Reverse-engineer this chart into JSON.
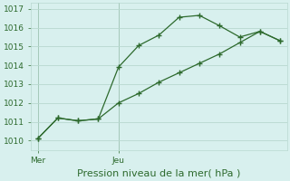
{
  "line1_x": [
    0,
    3,
    6,
    9,
    12,
    15,
    18,
    21,
    24,
    27,
    30,
    33,
    36
  ],
  "line1_y": [
    1010.1,
    1011.2,
    1011.05,
    1011.15,
    1013.9,
    1015.05,
    1015.6,
    1016.55,
    1016.65,
    1016.1,
    1015.5,
    1015.8,
    1015.3
  ],
  "line2_x": [
    0,
    3,
    6,
    9,
    12,
    15,
    18,
    21,
    24,
    27,
    30,
    33,
    36
  ],
  "line2_y": [
    1010.1,
    1011.2,
    1011.05,
    1011.15,
    1012.0,
    1012.5,
    1013.1,
    1013.6,
    1014.1,
    1014.6,
    1015.2,
    1015.8,
    1015.3
  ],
  "line_color": "#2d6a2d",
  "background_color": "#d8f0ee",
  "grid_color": "#b8d8d0",
  "ylim": [
    1009.5,
    1017.3
  ],
  "yticks": [
    1010,
    1011,
    1012,
    1013,
    1014,
    1015,
    1016,
    1017
  ],
  "xtick_positions": [
    0,
    12
  ],
  "xtick_labels": [
    "Mer",
    "Jeu"
  ],
  "xlabel": "Pression niveau de la mer( hPa )",
  "xlabel_fontsize": 8,
  "tick_fontsize": 6.5,
  "figsize": [
    3.2,
    2.0
  ],
  "dpi": 100
}
